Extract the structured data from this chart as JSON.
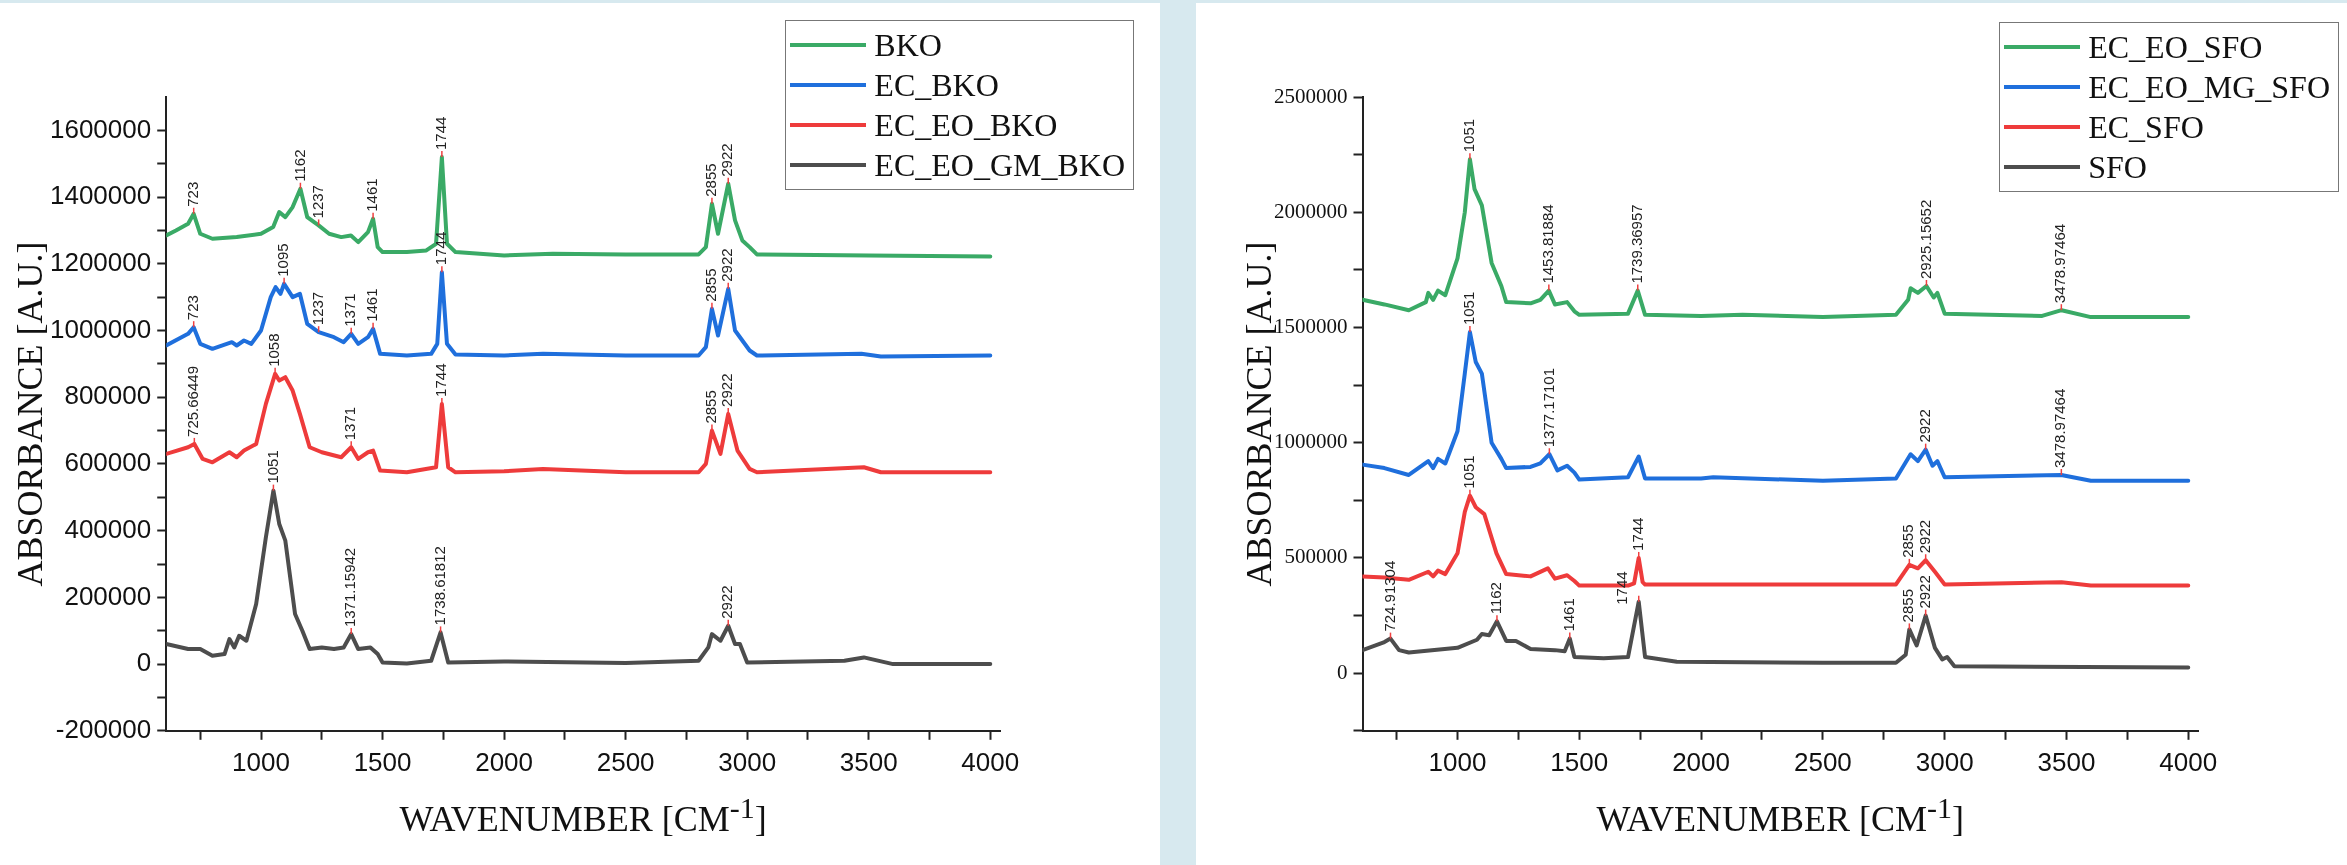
{
  "chart_data": [
    {
      "type": "line",
      "xlabel": "WAVENUMBER [CM$^{-1}$]",
      "ylabel": "ABSORBANCE [A.U.]",
      "legend": "top right",
      "grid": false,
      "xlim": [
        610,
        4040
      ],
      "xticks": [
        {
          "value": 750,
          "label": null
        },
        1000,
        {
          "value": 1250,
          "label": null
        },
        1500,
        {
          "value": 1750,
          "label": null
        },
        2000,
        {
          "value": 2250,
          "label": null
        },
        2500,
        {
          "value": 2750,
          "label": null
        },
        3000,
        {
          "value": 3250,
          "label": null
        },
        3500,
        {
          "value": 3750,
          "label": null
        },
        4000
      ],
      "ylim": [
        -200000,
        1700000
      ],
      "yticks": [
        -200000,
        {
          "value": -100000,
          "label": null
        },
        0,
        {
          "value": 100000,
          "label": null
        },
        200000,
        {
          "value": 300000,
          "label": null
        },
        400000,
        {
          "value": 500000,
          "label": null
        },
        600000,
        {
          "value": 700000,
          "label": null
        },
        800000,
        {
          "value": 900000,
          "label": null
        },
        1000000,
        {
          "value": 1100000,
          "label": null
        },
        1200000,
        {
          "value": 1300000,
          "label": null
        },
        1400000,
        {
          "value": 1500000,
          "label": null
        },
        1600000
      ],
      "series": [
        {
          "name": "BKO",
          "color": "#3aaa66",
          "x": [
            610,
            650,
            700,
            723,
            750,
            800,
            900,
            1000,
            1050,
            1075,
            1100,
            1130,
            1162,
            1190,
            1237,
            1280,
            1330,
            1370,
            1400,
            1440,
            1461,
            1480,
            1500,
            1600,
            1680,
            1720,
            1744,
            1765,
            1800,
            2000,
            2200,
            2500,
            2800,
            2830,
            2855,
            2880,
            2922,
            2950,
            2980,
            3010,
            3040,
            3500,
            4000
          ],
          "values": [
            1285000,
            1300000,
            1320000,
            1350000,
            1290000,
            1275000,
            1280000,
            1290000,
            1310000,
            1355000,
            1340000,
            1370000,
            1425000,
            1340000,
            1315000,
            1290000,
            1280000,
            1285000,
            1265000,
            1295000,
            1335000,
            1250000,
            1235000,
            1235000,
            1240000,
            1260000,
            1520000,
            1260000,
            1235000,
            1225000,
            1230000,
            1228000,
            1228000,
            1250000,
            1380000,
            1290000,
            1440000,
            1330000,
            1270000,
            1250000,
            1228000,
            1225000,
            1222000
          ]
        },
        {
          "name": "EC_BKO",
          "color": "#1f6fdc",
          "x": [
            610,
            700,
            723,
            750,
            800,
            880,
            900,
            930,
            960,
            1000,
            1040,
            1060,
            1080,
            1095,
            1130,
            1160,
            1190,
            1237,
            1300,
            1340,
            1371,
            1400,
            1440,
            1461,
            1490,
            1600,
            1700,
            1725,
            1744,
            1765,
            1800,
            2000,
            2160,
            2500,
            2800,
            2830,
            2855,
            2880,
            2922,
            2950,
            3010,
            3040,
            3470,
            3550,
            4000
          ],
          "values": [
            955000,
            990000,
            1010000,
            960000,
            945000,
            965000,
            955000,
            970000,
            960000,
            1000000,
            1100000,
            1130000,
            1110000,
            1140000,
            1100000,
            1110000,
            1020000,
            995000,
            980000,
            965000,
            990000,
            960000,
            980000,
            1005000,
            930000,
            925000,
            930000,
            960000,
            1175000,
            960000,
            928000,
            925000,
            930000,
            925000,
            925000,
            950000,
            1065000,
            985000,
            1125000,
            1000000,
            940000,
            925000,
            930000,
            922000,
            925000
          ]
        },
        {
          "name": "EC_EO_BKO",
          "color": "#ee3b3b",
          "x": [
            610,
            700,
            725.66449,
            760,
            800,
            870,
            900,
            930,
            980,
            1020,
            1058,
            1075,
            1100,
            1130,
            1160,
            1200,
            1250,
            1330,
            1371,
            1400,
            1440,
            1461,
            1490,
            1600,
            1720,
            1744,
            1770,
            1800,
            2000,
            2160,
            2500,
            2800,
            2830,
            2855,
            2890,
            2922,
            2960,
            3010,
            3040,
            3480,
            3550,
            4000
          ],
          "values": [
            630000,
            650000,
            660000,
            615000,
            605000,
            635000,
            620000,
            640000,
            660000,
            780000,
            870000,
            850000,
            860000,
            820000,
            750000,
            650000,
            635000,
            620000,
            650000,
            615000,
            635000,
            640000,
            580000,
            575000,
            590000,
            780000,
            590000,
            575000,
            578000,
            585000,
            575000,
            575000,
            600000,
            700000,
            630000,
            750000,
            640000,
            585000,
            575000,
            590000,
            575000,
            575000
          ]
        },
        {
          "name": "EC_EO_GM_BKO",
          "color": "#4d4d4d",
          "x": [
            610,
            700,
            750,
            800,
            850,
            870,
            890,
            910,
            940,
            980,
            1020,
            1051,
            1075,
            1100,
            1140,
            1170,
            1200,
            1250,
            1300,
            1340,
            1371,
            1400,
            1450,
            1480,
            1500,
            1600,
            1700,
            1738.61812,
            1770,
            2000,
            2500,
            2800,
            2840,
            2855,
            2890,
            2922,
            2950,
            2970,
            3000,
            3400,
            3480,
            3600,
            4000
          ],
          "values": [
            60000,
            45000,
            45000,
            25000,
            30000,
            75000,
            50000,
            85000,
            70000,
            180000,
            380000,
            520000,
            420000,
            370000,
            150000,
            100000,
            45000,
            50000,
            45000,
            50000,
            90000,
            45000,
            50000,
            30000,
            5000,
            2000,
            10000,
            95000,
            5000,
            8000,
            3000,
            10000,
            50000,
            90000,
            70000,
            115000,
            60000,
            60000,
            5000,
            10000,
            20000,
            0,
            0
          ]
        }
      ],
      "annotations": [
        {
          "text": "723",
          "x": 723,
          "y": 1350000
        },
        {
          "text": "1162",
          "x": 1162,
          "y": 1425000
        },
        {
          "text": "1237",
          "x": 1237,
          "y": 1315000
        },
        {
          "text": "1461",
          "x": 1461,
          "y": 1335000
        },
        {
          "text": "1744",
          "x": 1744,
          "y": 1520000
        },
        {
          "text": "2855",
          "x": 2855,
          "y": 1380000
        },
        {
          "text": "2922",
          "x": 2922,
          "y": 1440000
        },
        {
          "text": "723",
          "x": 723,
          "y": 1010000
        },
        {
          "text": "1095",
          "x": 1095,
          "y": 1140000
        },
        {
          "text": "1237",
          "x": 1237,
          "y": 995000
        },
        {
          "text": "1371",
          "x": 1371,
          "y": 990000
        },
        {
          "text": "1461",
          "x": 1461,
          "y": 1005000
        },
        {
          "text": "1744",
          "x": 1744,
          "y": 1175000
        },
        {
          "text": "2855",
          "x": 2855,
          "y": 1065000
        },
        {
          "text": "2922",
          "x": 2922,
          "y": 1125000
        },
        {
          "text": "725.66449",
          "x": 725.66449,
          "y": 660000
        },
        {
          "text": "1058",
          "x": 1058,
          "y": 870000
        },
        {
          "text": "1371",
          "x": 1371,
          "y": 650000
        },
        {
          "text": "1744",
          "x": 1744,
          "y": 780000
        },
        {
          "text": "2855",
          "x": 2855,
          "y": 700000
        },
        {
          "text": "2922",
          "x": 2922,
          "y": 750000
        },
        {
          "text": "1051",
          "x": 1051,
          "y": 520000
        },
        {
          "text": "1371.15942",
          "x": 1371,
          "y": 90000
        },
        {
          "text": "1738.61812",
          "x": 1738.61812,
          "y": 95000
        },
        {
          "text": "2922",
          "x": 2922,
          "y": 115000
        }
      ]
    },
    {
      "type": "line",
      "xlabel": "WAVENUMBER [CM$^{-1}$]",
      "ylabel": "ABSORBANCE [A.U.]",
      "legend": "top right",
      "grid": false,
      "xlim": [
        610,
        4040
      ],
      "xticks": [
        {
          "value": 750,
          "label": null
        },
        1000,
        {
          "value": 1250,
          "label": null
        },
        1500,
        {
          "value": 1750,
          "label": null
        },
        2000,
        {
          "value": 2250,
          "label": null
        },
        2500,
        {
          "value": 2750,
          "label": null
        },
        3000,
        {
          "value": 3250,
          "label": null
        },
        3500,
        {
          "value": 3750,
          "label": null
        },
        4000
      ],
      "ylim": [
        -250000,
        2500000
      ],
      "yticks": [
        {
          "value": -250000,
          "label": null
        },
        0,
        {
          "value": 250000,
          "label": null
        },
        500000,
        {
          "value": 750000,
          "label": null
        },
        1000000,
        {
          "value": 1250000,
          "label": null
        },
        1500000,
        {
          "value": 1750000,
          "label": null
        },
        2000000,
        {
          "value": 2250000,
          "label": null
        },
        2500000
      ],
      "series": [
        {
          "name": "EC_EO_SFO",
          "color": "#3aaa66",
          "x": [
            610,
            700,
            800,
            870,
            880,
            900,
            920,
            950,
            1000,
            1030,
            1051,
            1070,
            1100,
            1140,
            1180,
            1200,
            1300,
            1340,
            1375,
            1400,
            1450,
            1480,
            1500,
            1700,
            1740,
            1770,
            2000,
            2170,
            2500,
            2800,
            2850,
            2860,
            2890,
            2925.15652,
            2955,
            2970,
            3000,
            3400,
            3480,
            3600,
            4000
          ],
          "values": [
            1620000,
            1600000,
            1575000,
            1610000,
            1650000,
            1620000,
            1660000,
            1640000,
            1800000,
            2000000,
            2230000,
            2100000,
            2030000,
            1780000,
            1680000,
            1610000,
            1605000,
            1620000,
            1660000,
            1600000,
            1610000,
            1570000,
            1555000,
            1560000,
            1660000,
            1555000,
            1550000,
            1555000,
            1545000,
            1555000,
            1620000,
            1670000,
            1650000,
            1680000,
            1630000,
            1650000,
            1560000,
            1550000,
            1575000,
            1545000,
            1545000
          ]
        },
        {
          "name": "EC_EO_MG_SFO",
          "color": "#1f6fdc",
          "x": [
            610,
            700,
            800,
            880,
            900,
            920,
            950,
            1000,
            1030,
            1051,
            1075,
            1100,
            1140,
            1180,
            1200,
            1300,
            1340,
            1377.17101,
            1410,
            1450,
            1480,
            1500,
            1700,
            1744,
            1770,
            2000,
            2050,
            2500,
            2800,
            2860,
            2890,
            2922,
            2950,
            2970,
            3000,
            3478.97464,
            3600,
            4000
          ],
          "values": [
            905000,
            890000,
            860000,
            920000,
            890000,
            930000,
            910000,
            1050000,
            1300000,
            1480000,
            1350000,
            1300000,
            1000000,
            930000,
            890000,
            895000,
            910000,
            950000,
            880000,
            900000,
            870000,
            840000,
            850000,
            940000,
            845000,
            845000,
            850000,
            835000,
            845000,
            950000,
            920000,
            970000,
            900000,
            920000,
            850000,
            860000,
            835000,
            835000
          ]
        },
        {
          "name": "EC_SFO",
          "color": "#ee3b3b",
          "x": [
            610,
            700,
            800,
            880,
            900,
            920,
            950,
            1000,
            1030,
            1051,
            1075,
            1110,
            1160,
            1200,
            1300,
            1371,
            1400,
            1450,
            1480,
            1500,
            1700,
            1725,
            1744,
            1760,
            1770,
            2000,
            2500,
            2800,
            2855,
            2890,
            2922,
            2960,
            3000,
            3480,
            3600,
            4000
          ],
          "values": [
            420000,
            415000,
            405000,
            440000,
            420000,
            445000,
            430000,
            520000,
            700000,
            770000,
            720000,
            690000,
            520000,
            430000,
            420000,
            455000,
            410000,
            425000,
            400000,
            380000,
            380000,
            390000,
            500000,
            395000,
            385000,
            385000,
            385000,
            385000,
            470000,
            455000,
            490000,
            440000,
            385000,
            395000,
            380000,
            380000
          ]
        },
        {
          "name": "SFO",
          "color": "#4d4d4d",
          "x": [
            610,
            700,
            724.91304,
            760,
            800,
            1000,
            1080,
            1100,
            1130,
            1162,
            1200,
            1240,
            1300,
            1400,
            1440,
            1461,
            1480,
            1600,
            1700,
            1744,
            1770,
            1900,
            2500,
            2800,
            2840,
            2855,
            2885,
            2922,
            2960,
            2990,
            3010,
            3040,
            4000
          ],
          "values": [
            100000,
            135000,
            150000,
            100000,
            90000,
            110000,
            145000,
            170000,
            165000,
            225000,
            140000,
            140000,
            105000,
            100000,
            95000,
            150000,
            70000,
            65000,
            70000,
            310000,
            70000,
            50000,
            45000,
            45000,
            80000,
            190000,
            120000,
            250000,
            110000,
            60000,
            70000,
            30000,
            25000
          ]
        }
      ],
      "annotations": [
        {
          "text": "1051",
          "x": 1051,
          "y": 2230000
        },
        {
          "text": "1453.81884",
          "x": 1375,
          "y": 1660000
        },
        {
          "text": "1739.36957",
          "x": 1740,
          "y": 1660000
        },
        {
          "text": "2925.15652",
          "x": 2925.15652,
          "y": 1680000
        },
        {
          "text": "3478.97464",
          "x": 3478.97464,
          "y": 1575000
        },
        {
          "text": "1051",
          "x": 1051,
          "y": 1480000
        },
        {
          "text": "1377.17101",
          "x": 1377.17101,
          "y": 950000
        },
        {
          "text": "2922",
          "x": 2922,
          "y": 970000
        },
        {
          "text": "3478.97464",
          "x": 3478.97464,
          "y": 860000
        },
        {
          "text": "1051",
          "x": 1051,
          "y": 770000
        },
        {
          "text": "1744",
          "x": 1744,
          "y": 500000
        },
        {
          "text": "2855",
          "x": 2855,
          "y": 470000
        },
        {
          "text": "2922",
          "x": 2922,
          "y": 490000
        },
        {
          "text": "724.91304",
          "x": 724.91304,
          "y": 150000
        },
        {
          "text": "1162",
          "x": 1162,
          "y": 225000
        },
        {
          "text": "1461",
          "x": 1461,
          "y": 150000
        },
        {
          "text": "1744",
          "x": 1744,
          "y": 310000
        },
        {
          "text": "2855",
          "x": 2855,
          "y": 190000
        },
        {
          "text": "2922",
          "x": 2922,
          "y": 250000
        }
      ]
    }
  ]
}
